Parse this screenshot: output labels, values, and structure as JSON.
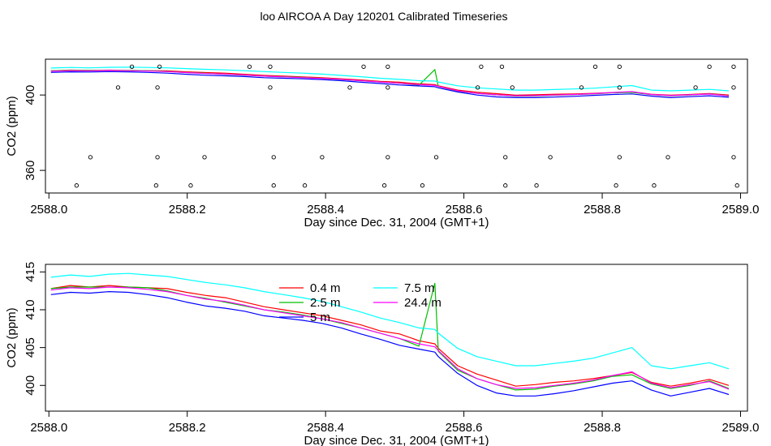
{
  "title": "loo AIRCOA A  Day 120201  Calibrated Timeseries",
  "chart_data": [
    {
      "type": "line",
      "xlabel": "Day since Dec. 31, 2004 (GMT+1)",
      "ylabel": "CO2 (ppm)",
      "xlim": [
        2587.995,
        2589.01
      ],
      "ylim": [
        348,
        419
      ],
      "xticks": [
        "2588.0",
        "2588.2",
        "2588.4",
        "2588.6",
        "2588.8",
        "2589.0"
      ],
      "yticks": [
        "360",
        "400"
      ],
      "grid": false,
      "colors": [
        "#ff0000",
        "#00c000",
        "#0000ff",
        "#00ffff",
        "#ff00ff"
      ],
      "x": [
        2588.003,
        2588.031,
        2588.059,
        2588.087,
        2588.115,
        2588.143,
        2588.171,
        2588.199,
        2588.227,
        2588.255,
        2588.283,
        2588.311,
        2588.339,
        2588.367,
        2588.395,
        2588.423,
        2588.451,
        2588.479,
        2588.507,
        2588.535,
        2588.558,
        2588.563,
        2588.591,
        2588.619,
        2588.647,
        2588.675,
        2588.703,
        2588.731,
        2588.759,
        2588.787,
        2588.815,
        2588.843,
        2588.871,
        2588.899,
        2588.927,
        2588.955,
        2588.983
      ],
      "series": [
        {
          "values": [
            412.8,
            413.2,
            413.0,
            413.2,
            413.0,
            412.9,
            412.8,
            412.3,
            411.9,
            411.6,
            411.0,
            410.4,
            410.0,
            409.6,
            409.2,
            408.6,
            408.0,
            407.2,
            406.8,
            405.9,
            405.5,
            404.9,
            402.6,
            401.5,
            400.7,
            399.9,
            400.1,
            400.4,
            400.6,
            400.9,
            401.3,
            401.7,
            400.4,
            399.9,
            400.3,
            400.8,
            400.0
          ]
        },
        {
          "values": [
            412.8,
            413.0,
            413.0,
            413.0,
            413.0,
            412.9,
            412.5,
            411.9,
            411.5,
            411.0,
            410.5,
            410.0,
            409.7,
            409.3,
            408.8,
            408.2,
            407.6,
            406.9,
            406.2,
            405.2,
            413.5,
            404.5,
            402.0,
            400.9,
            400.1,
            399.4,
            399.5,
            399.9,
            400.2,
            400.6,
            401.2,
            401.4,
            400.2,
            399.6,
            400.0,
            400.6,
            399.6
          ]
        },
        {
          "values": [
            412.0,
            412.3,
            412.2,
            412.4,
            412.3,
            412.0,
            411.6,
            411.0,
            410.5,
            410.2,
            409.8,
            409.2,
            408.9,
            408.6,
            408.2,
            407.6,
            406.8,
            406.1,
            405.3,
            404.8,
            404.4,
            403.8,
            401.6,
            400.0,
            399.0,
            398.6,
            398.6,
            398.9,
            399.3,
            399.8,
            400.3,
            400.6,
            399.4,
            398.6,
            399.1,
            399.6,
            398.8
          ]
        },
        {
          "values": [
            414.3,
            414.6,
            414.4,
            414.7,
            414.8,
            414.6,
            414.4,
            414.0,
            413.6,
            413.3,
            412.9,
            412.4,
            412.0,
            411.6,
            411.1,
            410.4,
            409.7,
            408.9,
            408.3,
            407.6,
            407.4,
            406.9,
            404.9,
            403.8,
            403.2,
            402.6,
            402.6,
            402.9,
            403.2,
            403.6,
            404.3,
            405.0,
            402.6,
            402.2,
            402.6,
            403.0,
            402.2
          ]
        },
        {
          "values": [
            412.6,
            412.9,
            412.8,
            413.0,
            412.9,
            412.7,
            412.4,
            411.9,
            411.4,
            411.1,
            410.6,
            410.0,
            409.6,
            409.2,
            408.8,
            408.3,
            407.6,
            406.9,
            406.2,
            405.5,
            405.1,
            404.6,
            402.2,
            400.9,
            400.1,
            399.6,
            399.7,
            400.0,
            400.3,
            400.7,
            401.3,
            401.8,
            400.3,
            399.7,
            400.1,
            400.5,
            399.5
          ]
        }
      ],
      "points": {
        "x": [
          2588.12,
          2588.16,
          2588.29,
          2588.32,
          2588.455,
          2588.49,
          2588.625,
          2588.655,
          2588.79,
          2588.825,
          2588.955,
          2588.99,
          2588.1,
          2588.157,
          2588.32,
          2588.435,
          2588.49,
          2588.62,
          2588.67,
          2588.77,
          2588.825,
          2588.935,
          2588.99,
          2588.06,
          2588.157,
          2588.225,
          2588.325,
          2588.395,
          2588.49,
          2588.56,
          2588.66,
          2588.725,
          2588.825,
          2588.895,
          2588.99,
          2588.04,
          2588.155,
          2588.205,
          2588.325,
          2588.37,
          2588.485,
          2588.54,
          2588.66,
          2588.705,
          2588.82,
          2588.875,
          2588.995
        ],
        "y": [
          415,
          415,
          415,
          415,
          415,
          415,
          415,
          415,
          415,
          415,
          415,
          415,
          404,
          404,
          404,
          404,
          404,
          404,
          404,
          404,
          404,
          404,
          404,
          367,
          367,
          367,
          367,
          367,
          367,
          367,
          367,
          367,
          367,
          367,
          367,
          352,
          352,
          352,
          352,
          352,
          352,
          352,
          352,
          352,
          352,
          352,
          352
        ]
      }
    },
    {
      "type": "line",
      "xlabel": "Day since Dec. 31, 2004 (GMT+1)",
      "ylabel": "CO2 (ppm)",
      "xlim": [
        2587.995,
        2589.01
      ],
      "ylim": [
        396.6,
        416.0
      ],
      "xticks": [
        "2588.0",
        "2588.2",
        "2588.4",
        "2588.6",
        "2588.8",
        "2589.0"
      ],
      "yticks": [
        "400",
        "405",
        "410",
        "415"
      ],
      "grid": false,
      "legend_position": "top-center",
      "x": [
        2588.003,
        2588.031,
        2588.059,
        2588.087,
        2588.115,
        2588.143,
        2588.171,
        2588.199,
        2588.227,
        2588.255,
        2588.283,
        2588.311,
        2588.339,
        2588.367,
        2588.395,
        2588.423,
        2588.451,
        2588.479,
        2588.507,
        2588.535,
        2588.558,
        2588.563,
        2588.591,
        2588.619,
        2588.647,
        2588.675,
        2588.703,
        2588.731,
        2588.759,
        2588.787,
        2588.815,
        2588.843,
        2588.871,
        2588.899,
        2588.927,
        2588.955,
        2588.983
      ],
      "series": [
        {
          "name": "0.4 m",
          "color": "#ff0000",
          "values": [
            412.8,
            413.2,
            413.0,
            413.2,
            413.0,
            412.9,
            412.8,
            412.3,
            411.9,
            411.6,
            411.0,
            410.4,
            410.0,
            409.6,
            409.2,
            408.6,
            408.0,
            407.2,
            406.8,
            405.9,
            405.5,
            404.9,
            402.6,
            401.5,
            400.7,
            399.9,
            400.1,
            400.4,
            400.6,
            400.9,
            401.3,
            401.7,
            400.4,
            399.9,
            400.3,
            400.8,
            400.0
          ]
        },
        {
          "name": "2.5 m",
          "color": "#00c000",
          "values": [
            412.8,
            413.0,
            413.0,
            413.0,
            413.0,
            412.9,
            412.5,
            411.9,
            411.5,
            411.0,
            410.5,
            410.0,
            409.7,
            409.3,
            408.8,
            408.2,
            407.6,
            406.9,
            406.2,
            405.2,
            413.5,
            404.5,
            402.0,
            400.9,
            400.1,
            399.4,
            399.5,
            399.9,
            400.2,
            400.6,
            401.2,
            401.4,
            400.2,
            399.6,
            400.0,
            400.6,
            399.6
          ]
        },
        {
          "name": "5 m",
          "color": "#0000ff",
          "values": [
            412.0,
            412.3,
            412.2,
            412.4,
            412.3,
            412.0,
            411.6,
            411.0,
            410.5,
            410.2,
            409.8,
            409.2,
            408.9,
            408.6,
            408.2,
            407.6,
            406.8,
            406.1,
            405.3,
            404.8,
            404.4,
            403.8,
            401.6,
            400.0,
            399.0,
            398.6,
            398.6,
            398.9,
            399.3,
            399.8,
            400.3,
            400.6,
            399.4,
            398.6,
            399.1,
            399.6,
            398.8
          ]
        },
        {
          "name": "7.5 m",
          "color": "#00ffff",
          "values": [
            414.3,
            414.6,
            414.4,
            414.7,
            414.8,
            414.6,
            414.4,
            414.0,
            413.6,
            413.3,
            412.9,
            412.4,
            412.0,
            411.6,
            411.1,
            410.4,
            409.7,
            408.9,
            408.3,
            407.6,
            407.4,
            406.9,
            404.9,
            403.8,
            403.2,
            402.6,
            402.6,
            402.9,
            403.2,
            403.6,
            404.3,
            405.0,
            402.6,
            402.2,
            402.6,
            403.0,
            402.2
          ]
        },
        {
          "name": "24.4 m",
          "color": "#ff00ff",
          "values": [
            412.6,
            412.9,
            412.8,
            413.0,
            412.9,
            412.7,
            412.4,
            411.9,
            411.4,
            411.1,
            410.6,
            410.0,
            409.6,
            409.2,
            408.8,
            408.3,
            407.6,
            406.9,
            406.2,
            405.5,
            405.1,
            404.6,
            402.2,
            400.9,
            400.1,
            399.6,
            399.7,
            400.0,
            400.3,
            400.7,
            401.3,
            401.8,
            400.3,
            399.7,
            400.1,
            400.5,
            399.5
          ]
        }
      ]
    }
  ]
}
